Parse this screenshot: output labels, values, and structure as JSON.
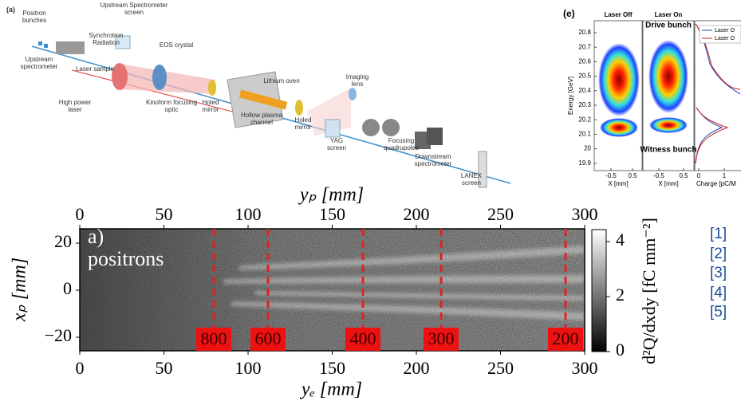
{
  "schematic": {
    "label": "(a)",
    "labels": [
      "Positron bunches",
      "Upstream Spectrometer screen",
      "Synchrotron Radiation",
      "EOS crystal",
      "Upstream spectrometer",
      "Laser sample",
      "High power laser",
      "Kinoform focusing optic",
      "Holed mirror",
      "Lithium oven",
      "Hollow plasma channel",
      "Holed mirror",
      "Imaging lens",
      "YAG screen",
      "Focusing quadrupoles",
      "Downstream spectrometer",
      "LANEX screen"
    ]
  },
  "spectra": {
    "label": "(e)",
    "panel_titles": [
      "Laser Off",
      "Laser On"
    ],
    "drive_label": "Drive bunch",
    "witness_label": "Witness bunch",
    "y_label": "Energy [GeV]",
    "yticks": [
      20.8,
      20.7,
      20.6,
      20.5,
      20.4,
      20.3,
      20.2,
      20.1,
      20,
      19.9
    ],
    "xticks": [
      -0.5,
      0.5
    ],
    "x_label": "X [mm]",
    "charge_ticks": [
      0,
      1
    ],
    "charge_label": "Charge [pC/M",
    "legend": [
      "Laser O",
      "Laser O"
    ]
  },
  "image_plot": {
    "panel_label": "a)",
    "species": "positrons",
    "top_label": "yₚ [mm]",
    "top_ticks": [
      0,
      50,
      100,
      150,
      200,
      250,
      300
    ],
    "left_label": "xₚ [mm]",
    "left_ticks": [
      20,
      0,
      {
        "value": -20,
        "label": "−20"
      }
    ],
    "bottom_label": "yₑ [mm]",
    "bottom_ticks": [
      0,
      50,
      100,
      150,
      200,
      250,
      300
    ],
    "colorbar_label": "d²Q/dxdy [fC mm⁻²]",
    "colorbar_ticks": [
      0,
      2,
      4
    ],
    "markers": [
      800,
      600,
      400,
      300,
      200
    ]
  },
  "references": [
    "[1]",
    "[2]",
    "[3]",
    "[4]",
    "[5]"
  ]
}
